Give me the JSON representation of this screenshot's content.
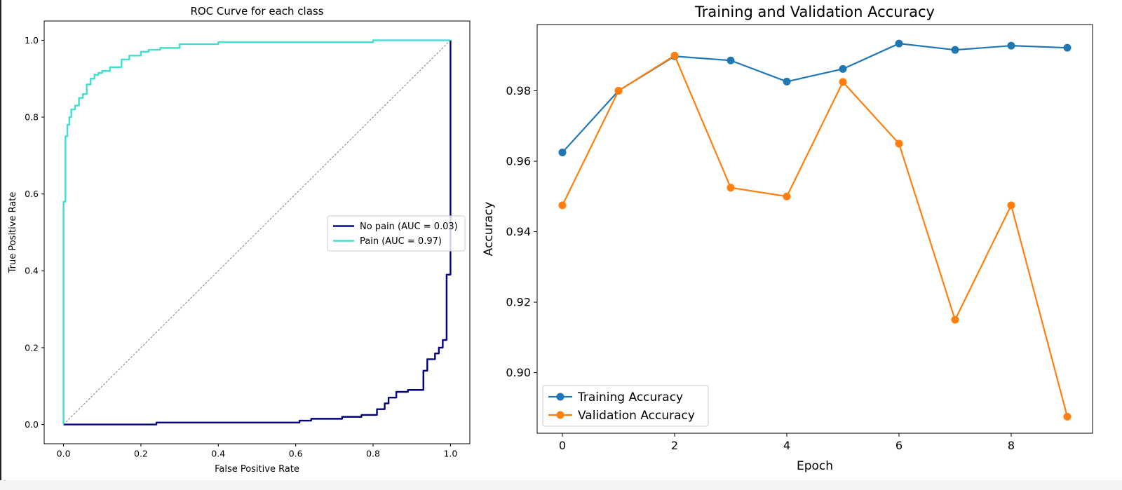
{
  "chart_data": [
    {
      "type": "line",
      "title": "ROC Curve for each class",
      "xlabel": "False Positive Rate",
      "ylabel": "True Positive Rate",
      "xlim": [
        -0.05,
        1.05
      ],
      "ylim": [
        -0.05,
        1.05
      ],
      "xticks": [
        "0.0",
        "0.2",
        "0.4",
        "0.6",
        "0.8",
        "1.0"
      ],
      "yticks": [
        "0.0",
        "0.2",
        "0.4",
        "0.6",
        "0.8",
        "1.0"
      ],
      "grid": false,
      "legend_position": "center-right",
      "diagonal": {
        "x": [
          0,
          1
        ],
        "y": [
          0,
          1
        ],
        "color": "#808080",
        "style": "dashed"
      },
      "series": [
        {
          "name": "No pain (AUC = 0.03)",
          "color": "#000080",
          "x": [
            0.0,
            0.24,
            0.24,
            0.61,
            0.61,
            0.64,
            0.64,
            0.72,
            0.72,
            0.77,
            0.77,
            0.81,
            0.81,
            0.83,
            0.83,
            0.84,
            0.84,
            0.86,
            0.86,
            0.89,
            0.89,
            0.93,
            0.93,
            0.94,
            0.94,
            0.96,
            0.96,
            0.97,
            0.97,
            0.98,
            0.98,
            0.99,
            0.99,
            1.0,
            1.0
          ],
          "y": [
            0.0,
            0.0,
            0.005,
            0.005,
            0.01,
            0.01,
            0.015,
            0.015,
            0.02,
            0.02,
            0.025,
            0.025,
            0.04,
            0.04,
            0.055,
            0.055,
            0.07,
            0.07,
            0.085,
            0.085,
            0.09,
            0.09,
            0.14,
            0.14,
            0.17,
            0.17,
            0.185,
            0.185,
            0.2,
            0.2,
            0.22,
            0.22,
            0.39,
            0.39,
            1.0
          ]
        },
        {
          "name": "Pain (AUC = 0.97)",
          "color": "#40e0d0",
          "x": [
            0.0,
            0.0,
            0.005,
            0.005,
            0.01,
            0.01,
            0.015,
            0.015,
            0.02,
            0.02,
            0.03,
            0.03,
            0.04,
            0.04,
            0.05,
            0.05,
            0.06,
            0.06,
            0.07,
            0.07,
            0.08,
            0.08,
            0.09,
            0.09,
            0.1,
            0.1,
            0.12,
            0.12,
            0.15,
            0.15,
            0.17,
            0.17,
            0.2,
            0.2,
            0.22,
            0.22,
            0.25,
            0.25,
            0.3,
            0.3,
            0.4,
            0.4,
            0.8,
            0.8,
            1.0
          ],
          "y": [
            0.0,
            0.58,
            0.58,
            0.75,
            0.75,
            0.78,
            0.78,
            0.8,
            0.8,
            0.82,
            0.82,
            0.83,
            0.83,
            0.85,
            0.85,
            0.86,
            0.86,
            0.885,
            0.885,
            0.9,
            0.9,
            0.91,
            0.91,
            0.915,
            0.915,
            0.92,
            0.92,
            0.93,
            0.93,
            0.95,
            0.95,
            0.96,
            0.96,
            0.97,
            0.97,
            0.975,
            0.975,
            0.98,
            0.98,
            0.99,
            0.99,
            0.995,
            0.995,
            1.0,
            1.0
          ]
        }
      ]
    },
    {
      "type": "line",
      "title": "Training and Validation Accuracy",
      "xlabel": "Epoch",
      "ylabel": "Accuracy",
      "xlim": [
        -0.45,
        9.45
      ],
      "ylim": [
        0.8828,
        0.9988
      ],
      "xticks": [
        "0",
        "2",
        "4",
        "6",
        "8"
      ],
      "yticks": [
        "0.90",
        "0.92",
        "0.94",
        "0.96",
        "0.98"
      ],
      "grid": false,
      "legend_position": "lower-left",
      "series": [
        {
          "name": "Training Accuracy",
          "color": "#1f77b4",
          "x": [
            0,
            1,
            2,
            3,
            4,
            5,
            6,
            7,
            8,
            9
          ],
          "y": [
            0.9625,
            0.98,
            0.9898,
            0.9886,
            0.9826,
            0.9862,
            0.9934,
            0.9916,
            0.9928,
            0.9922
          ]
        },
        {
          "name": "Validation Accuracy",
          "color": "#ff7f0e",
          "x": [
            0,
            1,
            2,
            3,
            4,
            5,
            6,
            7,
            8,
            9
          ],
          "y": [
            0.9475,
            0.98,
            0.99,
            0.9525,
            0.95,
            0.9825,
            0.965,
            0.915,
            0.9475,
            0.8875
          ]
        }
      ]
    }
  ]
}
